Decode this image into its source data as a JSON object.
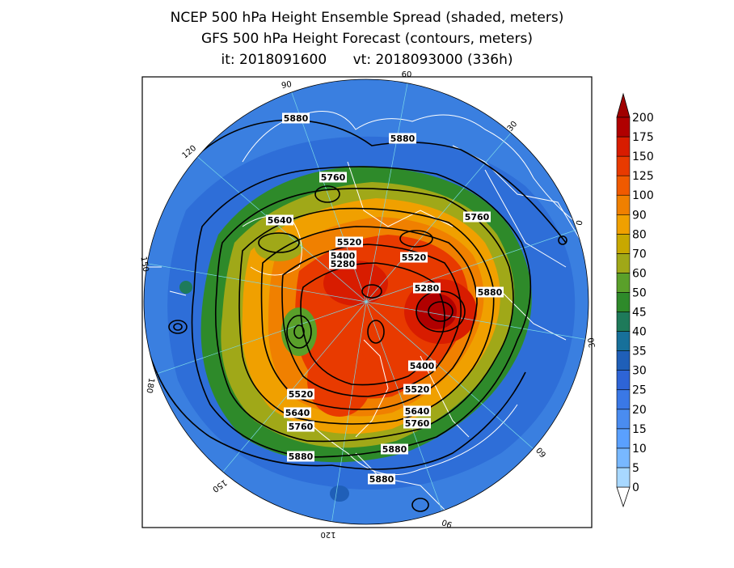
{
  "titles": {
    "line1": "NCEP 500 hPa Height Ensemble Spread (shaded, meters)",
    "line2": "GFS 500 hPa Height Forecast (contours, meters)",
    "line3": "it: 2018091600      vt: 2018093000 (336h)"
  },
  "colorbar": {
    "levels": [
      "0",
      "5",
      "10",
      "15",
      "20",
      "25",
      "30",
      "35",
      "40",
      "45",
      "50",
      "60",
      "70",
      "80",
      "90",
      "100",
      "125",
      "150",
      "175",
      "200"
    ],
    "colors": [
      "#a8d8ff",
      "#78b8ff",
      "#5aa0ff",
      "#4a8cf0",
      "#3a78e6",
      "#2e64d6",
      "#1f5fb8",
      "#17709a",
      "#1e7a5a",
      "#2e8a2a",
      "#5aa02a",
      "#a0a818",
      "#c8a800",
      "#f0a000",
      "#f08000",
      "#f05a00",
      "#e83a00",
      "#d81c00",
      "#b00000"
    ],
    "top_color": "#a00000"
  },
  "longitude_labels": [
    "60",
    "30",
    "0",
    "30",
    "60",
    "90",
    "120",
    "150",
    "180",
    "150",
    "120",
    "90"
  ],
  "contour_labels": [
    "5880",
    "5880",
    "5760",
    "5640",
    "5760",
    "5520",
    "5400",
    "5280",
    "5520",
    "5280",
    "5880",
    "5400",
    "5520",
    "5640",
    "5760",
    "5520",
    "5640",
    "5760",
    "5880",
    "5880",
    "5880"
  ],
  "colors": {
    "ocean_background": "#3a7fe0",
    "boundary_lines": "#ffffff",
    "contour_lines": "#000000"
  }
}
